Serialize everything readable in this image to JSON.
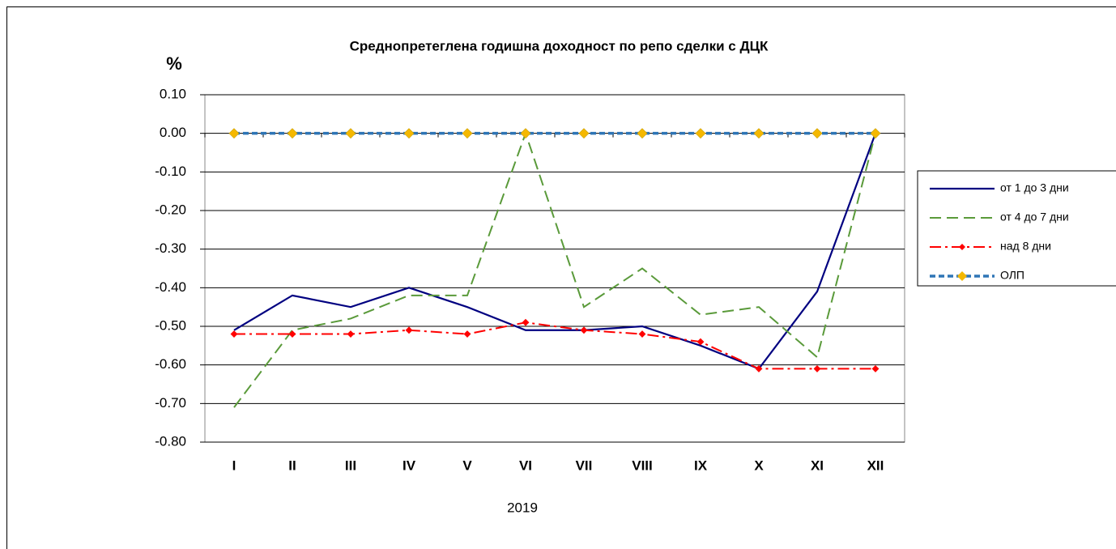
{
  "chart_data": {
    "type": "line",
    "title": "Среднопретеглена годишна доходност по репо сделки с ДЦК",
    "y_label": "%",
    "x_label": "2019",
    "categories": [
      "I",
      "II",
      "III",
      "IV",
      "V",
      "VI",
      "VII",
      "VIII",
      "IX",
      "X",
      "XI",
      "XII"
    ],
    "series": [
      {
        "name": "от 1 до 3 дни",
        "color": "#000080",
        "line_style": "solid",
        "marker": "none",
        "values": [
          -0.51,
          -0.42,
          -0.45,
          -0.4,
          -0.45,
          -0.51,
          -0.51,
          -0.5,
          -0.55,
          -0.61,
          -0.41,
          0.0
        ]
      },
      {
        "name": "от 4 до 7 дни",
        "color": "#5a9a3a",
        "line_style": "dashed",
        "marker": "none",
        "values": [
          -0.71,
          -0.51,
          -0.48,
          -0.42,
          -0.42,
          0.0,
          -0.45,
          -0.35,
          -0.47,
          -0.45,
          -0.58,
          0.0
        ]
      },
      {
        "name": "над 8 дни",
        "color": "#ff0000",
        "line_style": "dashdot",
        "marker": "diamond",
        "marker_color": "#ff0000",
        "values": [
          -0.52,
          -0.52,
          -0.52,
          -0.51,
          -0.52,
          -0.49,
          -0.51,
          -0.52,
          -0.54,
          -0.61,
          -0.61,
          -0.61
        ]
      },
      {
        "name": "ОЛП",
        "color": "#2e75b6",
        "line_style": "dotted",
        "marker": "diamond",
        "marker_color": "#f5b800",
        "values": [
          0,
          0,
          0,
          0,
          0,
          0,
          0,
          0,
          0,
          0,
          0,
          0
        ]
      }
    ],
    "ylim": [
      -0.8,
      0.1
    ],
    "yticks": [
      {
        "value": 0.1,
        "label": "0.10"
      },
      {
        "value": 0,
        "label": "0.00"
      },
      {
        "value": -0.1,
        "label": "-0.10"
      },
      {
        "value": -0.2,
        "label": "-0.20"
      },
      {
        "value": -0.3,
        "label": "-0.30"
      },
      {
        "value": -0.4,
        "label": "-0.40"
      },
      {
        "value": -0.5,
        "label": "-0.50"
      },
      {
        "value": -0.6,
        "label": "-0.60"
      },
      {
        "value": -0.7,
        "label": "-0.70"
      },
      {
        "value": -0.8,
        "label": "-0.80"
      }
    ],
    "grid": true,
    "legend": "right"
  }
}
